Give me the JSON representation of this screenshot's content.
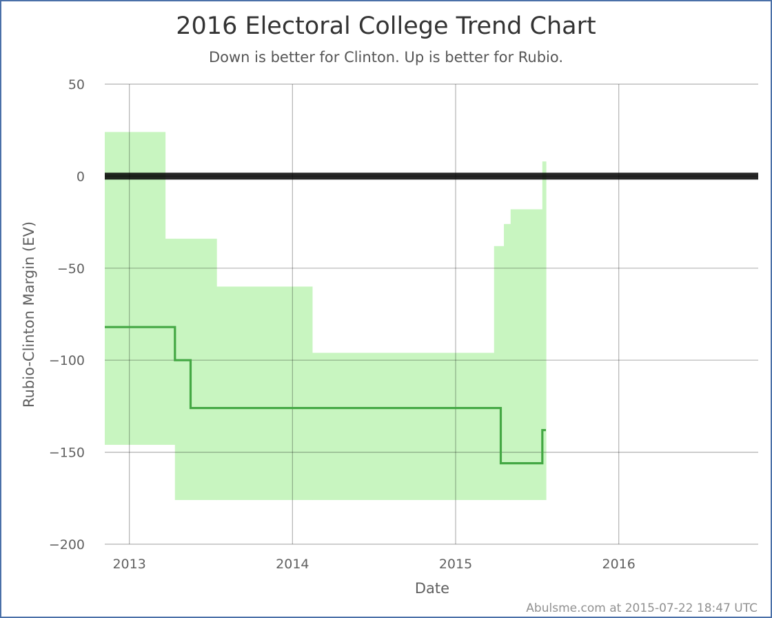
{
  "chart_data": {
    "type": "line",
    "title": "2016 Electoral College Trend Chart",
    "subtitle": "Down is better for Clinton. Up is better for Rubio.",
    "xlabel": "Date",
    "ylabel": "Rubio-Clinton Margin (EV)",
    "ylim": [
      -200,
      50
    ],
    "xlim": [
      "2012-11-07",
      "2016-11-08"
    ],
    "y_ticks": [
      50,
      0,
      -50,
      -100,
      -150,
      -200
    ],
    "y_tick_labels": [
      "50",
      "0",
      "−50",
      "−100",
      "−150",
      "−200"
    ],
    "x_ticks": [
      "2013-01-01",
      "2014-01-01",
      "2015-01-01",
      "2016-01-01"
    ],
    "x_tick_labels": [
      "2013",
      "2014",
      "2015",
      "2016"
    ],
    "grid": true,
    "colors": {
      "line": "#44a844",
      "band": "#c8f5c0",
      "zero_line": "#000000",
      "border": "#4a70a8"
    },
    "zero_line": 0,
    "series": [
      {
        "values": [
          {
            "x": "2012-11-07",
            "y": -82
          },
          {
            "x": "2013-04-13",
            "y": -100
          },
          {
            "x": "2013-05-18",
            "y": -126
          },
          {
            "x": "2015-04-12",
            "y": -156
          },
          {
            "x": "2015-07-14",
            "y": -138
          },
          {
            "x": "2015-07-22",
            "y": -138
          }
        ]
      }
    ],
    "range_band": [
      {
        "from": "2012-11-07",
        "to": "2013-03-22",
        "high": 24,
        "low": -146
      },
      {
        "from": "2013-03-22",
        "to": "2013-04-13",
        "high": -34,
        "low": -146
      },
      {
        "from": "2013-04-13",
        "to": "2013-07-15",
        "high": -34,
        "low": -176
      },
      {
        "from": "2013-07-15",
        "to": "2014-02-14",
        "high": -60,
        "low": -176
      },
      {
        "from": "2014-02-14",
        "to": "2015-03-28",
        "high": -96,
        "low": -176
      },
      {
        "from": "2015-03-28",
        "to": "2015-04-19",
        "high": -38,
        "low": -176
      },
      {
        "from": "2015-04-19",
        "to": "2015-05-04",
        "high": -26,
        "low": -176
      },
      {
        "from": "2015-05-04",
        "to": "2015-07-14",
        "high": -18,
        "low": -176
      },
      {
        "from": "2015-07-14",
        "to": "2015-07-22",
        "high": 8,
        "low": -176
      }
    ]
  },
  "credit": "Abulsme.com at 2015-07-22 18:47 UTC"
}
